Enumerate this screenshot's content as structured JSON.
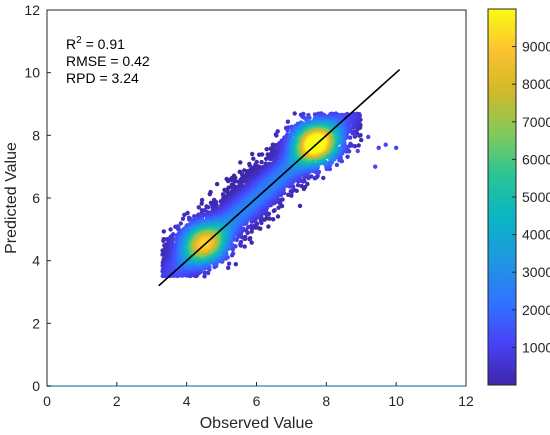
{
  "chart_data": {
    "type": "scatter",
    "subtype": "density-scatter",
    "xlabel": "Observed Value",
    "ylabel": "Predicted Value",
    "xlim": [
      0,
      12
    ],
    "ylim": [
      0,
      12
    ],
    "x_ticks": [
      "0",
      "2",
      "4",
      "6",
      "8",
      "10",
      "12"
    ],
    "y_ticks": [
      "0",
      "2",
      "4",
      "6",
      "8",
      "10",
      "12"
    ],
    "grid": false,
    "stats": {
      "r2_base": "R",
      "r2_sup": "2",
      "r2_value": " = 0.91",
      "rmse": "RMSE = 0.42",
      "rpd": "RPD = 3.24"
    },
    "fit_line": {
      "x": [
        3.2,
        10.1
      ],
      "y": [
        3.2,
        10.1
      ],
      "color": "#000000"
    },
    "clusters": [
      {
        "x": 4.5,
        "y": 4.55,
        "density": 7000
      },
      {
        "x": 7.7,
        "y": 7.75,
        "density": 9500
      }
    ],
    "outliers": [
      {
        "x": 9.5,
        "y": 7.6
      },
      {
        "x": 9.7,
        "y": 7.7
      },
      {
        "x": 10.0,
        "y": 7.6
      },
      {
        "x": 9.4,
        "y": 7.0
      },
      {
        "x": 8.9,
        "y": 7.5
      },
      {
        "x": 9.2,
        "y": 7.95
      }
    ],
    "colorbar": {
      "range": [
        0,
        10000
      ],
      "ticks": [
        "1000",
        "2000",
        "3000",
        "4000",
        "5000",
        "6000",
        "7000",
        "8000",
        "9000"
      ],
      "colormap": "parula",
      "colors": [
        "#3e26a8",
        "#4743f8",
        "#2f74ff",
        "#1e98e0",
        "#0ab5c4",
        "#28c497",
        "#7fcb5b",
        "#d0b92b",
        "#fcc22f",
        "#f9fb15"
      ]
    }
  }
}
